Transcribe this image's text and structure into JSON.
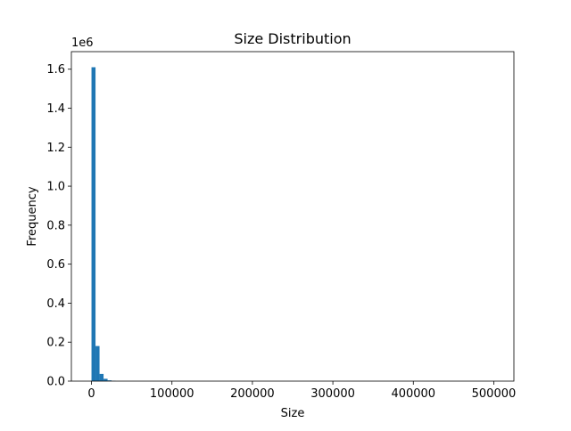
{
  "chart_data": {
    "type": "bar",
    "title": "Size Distribution",
    "xlabel": "Size",
    "ylabel": "Frequency",
    "y_offset_label": "1e6",
    "xlim": [
      -25000,
      525000
    ],
    "ylim": [
      0,
      1.69
    ],
    "x_ticks": [
      0,
      100000,
      200000,
      300000,
      400000,
      500000
    ],
    "x_tick_labels": [
      "0",
      "100000",
      "200000",
      "300000",
      "400000",
      "500000"
    ],
    "y_ticks": [
      0,
      0.2,
      0.4,
      0.6,
      0.8,
      1.0,
      1.2,
      1.4,
      1.6
    ],
    "y_tick_labels": [
      "0.0",
      "0.2",
      "0.4",
      "0.6",
      "0.8",
      "1.0",
      "1.2",
      "1.4",
      "1.6"
    ],
    "bin_width": 5000,
    "bins_start": [
      0,
      5000,
      10000,
      15000,
      20000,
      25000
    ],
    "values": [
      1.61,
      0.18,
      0.037,
      0.012,
      0.004,
      0.0015
    ],
    "bar_color": "#1f77b4",
    "grid": false,
    "legend": "none"
  }
}
